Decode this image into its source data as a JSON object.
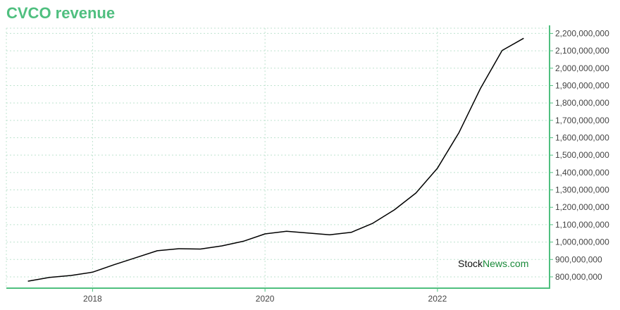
{
  "title": "CVCO revenue",
  "watermark": {
    "part1": "Stock",
    "part2": "News",
    "part3": ".com"
  },
  "colors": {
    "accent": "#4fbf7f",
    "grid": "#bfe3cf",
    "line": "#000000",
    "watermark_dark": "#111111",
    "watermark_green": "#1a8a3a"
  },
  "chart_data": {
    "type": "line",
    "title": "CVCO revenue",
    "xlabel": "",
    "ylabel": "",
    "x_ticks": [
      "2018",
      "2020",
      "2022"
    ],
    "y_ticks": [
      "800,000,000",
      "900,000,000",
      "1,000,000,000",
      "1,100,000,000",
      "1,200,000,000",
      "1,300,000,000",
      "1,400,000,000",
      "1,500,000,000",
      "1,600,000,000",
      "1,700,000,000",
      "1,800,000,000",
      "1,900,000,000",
      "2,000,000,000",
      "2,100,000,000",
      "2,200,000,000"
    ],
    "xlim": [
      2017.0,
      2023.3
    ],
    "ylim": [
      735000000,
      2230000000
    ],
    "grid": true,
    "y_axis_side": "right",
    "series": [
      {
        "x": [
          2017.25,
          2017.5,
          2017.75,
          2018.0,
          2018.25,
          2018.5,
          2018.75,
          2019.0,
          2019.25,
          2019.5,
          2019.75,
          2020.0,
          2020.25,
          2020.5,
          2020.75,
          2021.0,
          2021.25,
          2021.5,
          2021.75,
          2022.0,
          2022.25,
          2022.5,
          2022.75,
          2023.0
        ],
        "y": [
          775000000,
          797000000,
          808000000,
          827000000,
          870000000,
          910000000,
          950000000,
          962000000,
          960000000,
          978000000,
          1005000000,
          1047000000,
          1062000000,
          1052000000,
          1042000000,
          1056000000,
          1108000000,
          1185000000,
          1282000000,
          1425000000,
          1630000000,
          1885000000,
          2102000000,
          2172000000
        ]
      }
    ]
  }
}
